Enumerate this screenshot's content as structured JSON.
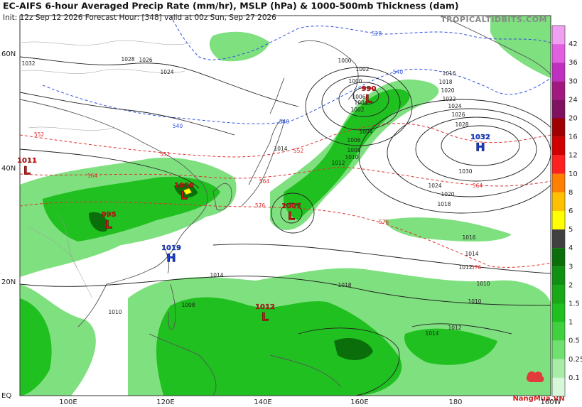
{
  "header": {
    "title": "EC-AIFS 6-hour Averaged Precip Rate (mm/hr), MSLP (hPa) & 1000-500mb Thickness (dam)",
    "subtitle": "Init: 12z Sep 12 2026   Forecast Hour: [348]   valid at 00z Sun, Sep 27 2026",
    "credit": "TROPICALTIDBITS.COM"
  },
  "map": {
    "lat_labels": [
      "60N",
      "40N",
      "20N",
      "EQ"
    ],
    "lon_labels": [
      "100E",
      "120E",
      "140E",
      "160E",
      "180",
      "160W"
    ],
    "centers": [
      {
        "letter": "H",
        "value": "1032"
      },
      {
        "letter": "L",
        "value": "990"
      },
      {
        "letter": "L",
        "value": "1007"
      },
      {
        "letter": "L",
        "value": "1012"
      },
      {
        "letter": "L",
        "value": "1006"
      },
      {
        "letter": "L",
        "value": "995"
      },
      {
        "letter": "L",
        "value": "1011"
      },
      {
        "letter": "H",
        "value": "1019"
      }
    ],
    "isobar_labels": [
      "1032",
      "1028",
      "1026",
      "1024",
      "1000",
      "1002",
      "1004",
      "1006",
      "1008",
      "1010",
      "1012",
      "1014",
      "1016",
      "1018",
      "1020",
      "1022",
      "1024",
      "1026",
      "1028",
      "1030",
      "1024",
      "1020",
      "1018",
      "1016",
      "1014",
      "1012",
      "1010",
      "1010",
      "1014",
      "1012",
      "1014",
      "1018",
      "1008",
      "1010",
      "1006",
      "1004",
      "1002",
      "1000"
    ],
    "thickness_labels": [
      "552",
      "564",
      "552",
      "564",
      "576",
      "576",
      "576",
      "564",
      "540",
      "540",
      "528",
      "540",
      "552"
    ]
  },
  "colorbar": {
    "levels": [
      "42",
      "36",
      "30",
      "24",
      "20",
      "16",
      "12",
      "10",
      "8",
      "6",
      "5",
      "4",
      "3",
      "2",
      "1.5",
      "1",
      "0.5",
      "0.25",
      "0.1"
    ],
    "colors": [
      "#f0a0f0",
      "#e060e0",
      "#c030c0",
      "#a01880",
      "#801060",
      "#a00000",
      "#d00000",
      "#ff2020",
      "#ff8000",
      "#ffc000",
      "#ffff00",
      "#404040",
      "#0a6e0a",
      "#109010",
      "#18a818",
      "#20c020",
      "#40d040",
      "#70e070",
      "#a8eca8",
      "#d8f6d8"
    ]
  },
  "watermark": "NangMua.VN"
}
